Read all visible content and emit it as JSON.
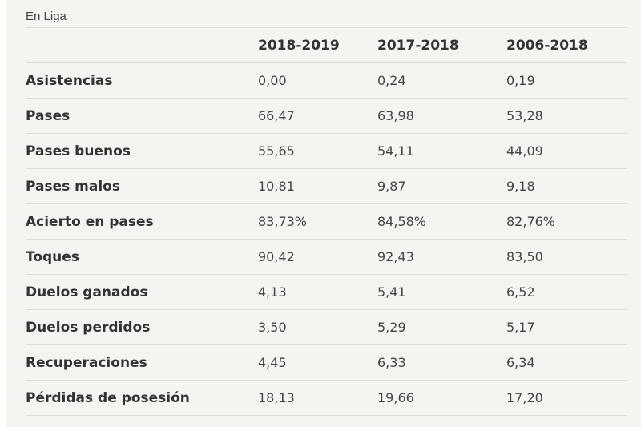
{
  "caption": "En Liga",
  "columns": [
    "",
    "2018-2019",
    "2017-2018",
    "2006-2018"
  ],
  "rows": [
    {
      "label": "Asistencias",
      "values": [
        "0,00",
        "0,24",
        "0,19"
      ]
    },
    {
      "label": "Pases",
      "values": [
        "66,47",
        "63,98",
        "53,28"
      ]
    },
    {
      "label": "Pases buenos",
      "values": [
        "55,65",
        "54,11",
        "44,09"
      ]
    },
    {
      "label": "Pases malos",
      "values": [
        "10,81",
        "9,87",
        "9,18"
      ]
    },
    {
      "label": "Acierto en pases",
      "values": [
        "83,73%",
        "84,58%",
        "82,76%"
      ]
    },
    {
      "label": "Toques",
      "values": [
        "90,42",
        "92,43",
        "83,50"
      ]
    },
    {
      "label": "Duelos ganados",
      "values": [
        "4,13",
        "5,41",
        "6,52"
      ]
    },
    {
      "label": "Duelos perdidos",
      "values": [
        "3,50",
        "5,29",
        "5,17"
      ]
    },
    {
      "label": "Recuperaciones",
      "values": [
        "4,45",
        "6,33",
        "6,34"
      ]
    },
    {
      "label": "Pérdidas de posesión",
      "values": [
        "18,13",
        "19,66",
        "17,20"
      ]
    }
  ]
}
